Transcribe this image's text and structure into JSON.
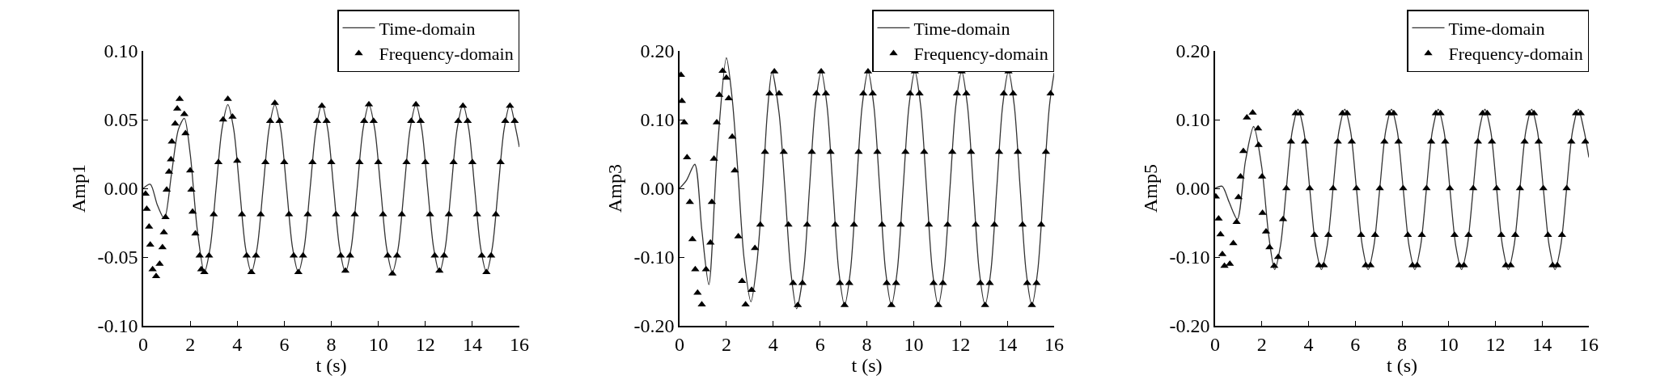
{
  "chart_data": [
    {
      "type": "line",
      "xlabel": "t (s)",
      "ylabel": "Amp1",
      "xlim": [
        0,
        16
      ],
      "xticks": [
        0,
        2,
        4,
        6,
        8,
        10,
        12,
        14,
        16
      ],
      "ylim": [
        -0.1,
        0.1
      ],
      "yticks": [
        {
          "value": -0.1,
          "label": "-0.10"
        },
        {
          "value": -0.05,
          "label": "-0.05"
        },
        {
          "value": 0,
          "label": "0.00"
        },
        {
          "value": 0.05,
          "label": "0.05"
        },
        {
          "value": 0.1,
          "label": "0.10"
        }
      ],
      "legend": "top right",
      "series": [
        {
          "name": "Time-domain",
          "type": "line",
          "color": "#333333",
          "line_style": "solid",
          "marker": "none",
          "x": [
            0,
            0.3,
            0.6,
            0.9,
            1.2,
            1.5,
            1.75,
            2.0,
            2.3,
            2.6,
            2.85,
            3.1,
            3.35,
            3.6,
            3.85,
            4.1,
            4.35,
            4.6,
            4.85,
            5.1,
            5.35,
            5.6,
            5.85,
            6.1,
            6.35,
            6.6,
            6.85,
            7.1,
            7.35,
            7.6,
            7.85,
            8.1,
            8.35,
            8.6,
            8.85,
            9.1,
            9.35,
            9.6,
            9.85,
            10.1,
            10.35,
            10.6,
            10.85,
            11.1,
            11.35,
            11.6,
            11.85,
            12.1,
            12.35,
            12.6,
            12.85,
            13.1,
            13.35,
            13.6,
            13.85,
            14.1,
            14.35,
            14.6,
            14.85,
            15.1,
            15.35,
            15.6,
            15.85,
            16
          ],
          "values": [
            0,
            0.003,
            -0.012,
            -0.022,
            0.01,
            0.043,
            0.051,
            0.025,
            -0.03,
            -0.061,
            -0.043,
            0,
            0.043,
            0.061,
            0.043,
            0,
            -0.043,
            -0.061,
            -0.043,
            0,
            0.043,
            0.061,
            0.043,
            0,
            -0.043,
            -0.061,
            -0.043,
            0,
            0.043,
            0.061,
            0.043,
            0,
            -0.043,
            -0.061,
            -0.043,
            0,
            0.043,
            0.061,
            0.043,
            0,
            -0.043,
            -0.061,
            -0.043,
            0,
            0.043,
            0.061,
            0.043,
            0,
            -0.043,
            -0.061,
            -0.043,
            0,
            0.043,
            0.061,
            0.043,
            0,
            -0.043,
            -0.061,
            -0.043,
            0,
            0.043,
            0.061,
            0.043,
            0.03
          ]
        },
        {
          "name": "Frequency-domain",
          "type": "scatter",
          "color": "#000000",
          "marker": "triangle",
          "x": [
            0.1,
            0.15,
            0.25,
            0.3,
            0.4,
            0.55,
            0.7,
            0.82,
            0.88,
            0.95,
            1.0,
            1.1,
            1.18,
            1.22,
            1.36,
            1.45,
            1.55,
            1.75,
            1.8,
            2.0,
            2.05,
            2.1,
            2.22,
            2.4,
            2.47,
            2.6,
            2.8,
            3,
            3.2,
            3.4,
            3.6,
            3.8,
            4,
            4.2,
            4.4,
            4.6,
            4.8,
            5,
            5.2,
            5.4,
            5.6,
            5.8,
            6,
            6.2,
            6.4,
            6.6,
            6.8,
            7,
            7.2,
            7.4,
            7.6,
            7.8,
            8,
            8.2,
            8.4,
            8.6,
            8.8,
            9,
            9.2,
            9.4,
            9.6,
            9.8,
            10,
            10.2,
            10.4,
            10.6,
            10.8,
            11,
            11.2,
            11.4,
            11.6,
            11.8,
            12,
            12.2,
            12.4,
            12.6,
            12.8,
            13,
            13.2,
            13.4,
            13.6,
            13.8,
            14,
            14.2,
            14.4,
            14.6,
            14.8,
            15,
            15.2,
            15.4,
            15.6,
            15.8
          ],
          "values": [
            -0.004,
            -0.015,
            -0.028,
            -0.041,
            -0.059,
            -0.064,
            -0.055,
            -0.043,
            -0.032,
            -0.021,
            -0.001,
            0.012,
            0.021,
            0.034,
            0.047,
            0.058,
            0.065,
            0.054,
            0.04,
            0.013,
            -0.001,
            -0.017,
            -0.033,
            -0.049,
            -0.059,
            -0.061,
            -0.049,
            -0.019,
            0.019,
            0.05,
            0.065,
            0.052,
            0.02,
            -0.019,
            -0.049,
            -0.061,
            -0.049,
            -0.019,
            0.019,
            0.049,
            0.062,
            0.049,
            0.019,
            -0.019,
            -0.049,
            -0.061,
            -0.049,
            -0.019,
            0.019,
            0.049,
            0.06,
            0.049,
            0.019,
            -0.019,
            -0.049,
            -0.06,
            -0.049,
            -0.019,
            0.019,
            0.049,
            0.061,
            0.049,
            0.019,
            -0.019,
            -0.049,
            -0.062,
            -0.049,
            -0.019,
            0.019,
            0.049,
            0.061,
            0.049,
            0.019,
            -0.019,
            -0.049,
            -0.06,
            -0.049,
            -0.019,
            0.019,
            0.049,
            0.06,
            0.049,
            0.019,
            -0.019,
            -0.049,
            -0.061,
            -0.049,
            -0.019,
            0.019,
            0.049,
            0.06,
            0.049
          ]
        }
      ]
    },
    {
      "type": "line",
      "xlabel": "t (s)",
      "ylabel": "Amp3",
      "xlim": [
        0,
        16
      ],
      "xticks": [
        0,
        2,
        4,
        6,
        8,
        10,
        12,
        14,
        16
      ],
      "ylim": [
        -0.2,
        0.2
      ],
      "yticks": [
        {
          "value": -0.2,
          "label": "-0.20"
        },
        {
          "value": -0.1,
          "label": "-0.10"
        },
        {
          "value": 0,
          "label": "0.00"
        },
        {
          "value": 0.1,
          "label": "0.10"
        },
        {
          "value": 0.2,
          "label": "0.20"
        }
      ],
      "legend": "top right",
      "series": [
        {
          "name": "Time-domain",
          "type": "line",
          "color": "#333333",
          "line_style": "solid",
          "marker": "none",
          "x": [
            0,
            0.3,
            0.65,
            0.95,
            1.25,
            1.6,
            2.0,
            2.25,
            2.5,
            2.75,
            3.05,
            3.3,
            3.55,
            3.75,
            3.95,
            4.25,
            4.5,
            4.75,
            5.0,
            5.3,
            5.55,
            5.8,
            6.05,
            6.3,
            6.55,
            6.8,
            7.05,
            7.3,
            7.55,
            7.8,
            8.05,
            8.3,
            8.55,
            8.8,
            9.05,
            9.3,
            9.55,
            9.8,
            10.05,
            10.3,
            10.55,
            10.8,
            11.05,
            11.3,
            11.55,
            11.8,
            12.05,
            12.3,
            12.55,
            12.8,
            13.05,
            13.3,
            13.55,
            13.8,
            14.05,
            14.3,
            14.55,
            14.8,
            15.05,
            15.3,
            15.55,
            15.8,
            16
          ],
          "values": [
            0,
            0.012,
            0.035,
            -0.06,
            -0.14,
            0.05,
            0.19,
            0.13,
            0.02,
            -0.1,
            -0.165,
            -0.11,
            0,
            0.11,
            0.17,
            0.11,
            0,
            -0.12,
            -0.175,
            -0.12,
            0,
            0.12,
            0.17,
            0.12,
            0,
            -0.12,
            -0.17,
            -0.12,
            0,
            0.12,
            0.17,
            0.12,
            0,
            -0.12,
            -0.17,
            -0.12,
            0,
            0.12,
            0.17,
            0.12,
            0,
            -0.12,
            -0.17,
            -0.12,
            0,
            0.12,
            0.17,
            0.12,
            0,
            -0.12,
            -0.17,
            -0.12,
            0,
            0.12,
            0.17,
            0.12,
            0,
            -0.12,
            -0.17,
            -0.12,
            0,
            0.12,
            0.168
          ]
        },
        {
          "name": "Frequency-domain",
          "type": "scatter",
          "color": "#000000",
          "marker": "triangle",
          "x": [
            0.06,
            0.1,
            0.2,
            0.32,
            0.44,
            0.55,
            0.67,
            0.77,
            0.95,
            1.13,
            1.32,
            1.38,
            1.47,
            1.59,
            1.7,
            1.84,
            2.0,
            2.1,
            2.25,
            2.36,
            2.51,
            2.67,
            2.82,
            3.08,
            3.22,
            3.45,
            3.65,
            3.85,
            4.05,
            4.25,
            4.45,
            4.65,
            4.85,
            5.05,
            5.25,
            5.45,
            5.65,
            5.85,
            6.05,
            6.25,
            6.45,
            6.65,
            6.85,
            7.05,
            7.25,
            7.45,
            7.65,
            7.85,
            8.05,
            8.25,
            8.45,
            8.65,
            8.85,
            9.05,
            9.25,
            9.45,
            9.65,
            9.85,
            10.05,
            10.25,
            10.45,
            10.65,
            10.85,
            11.05,
            11.25,
            11.45,
            11.65,
            11.85,
            12.05,
            12.25,
            12.45,
            12.65,
            12.85,
            13.05,
            13.25,
            13.45,
            13.65,
            13.85,
            14.05,
            14.25,
            14.45,
            14.65,
            14.85,
            15.05,
            15.25,
            15.45,
            15.65,
            15.85
          ],
          "values": [
            0.165,
            0.127,
            0.096,
            0.045,
            -0.02,
            -0.074,
            -0.118,
            -0.152,
            -0.169,
            -0.118,
            -0.079,
            -0.02,
            0.043,
            0.096,
            0.136,
            0.171,
            0.161,
            0.131,
            0.075,
            0.026,
            -0.07,
            -0.135,
            -0.169,
            -0.148,
            -0.087,
            -0.053,
            0.053,
            0.138,
            0.17,
            0.138,
            0.053,
            -0.053,
            -0.138,
            -0.17,
            -0.138,
            -0.053,
            0.053,
            0.138,
            0.17,
            0.138,
            0.053,
            -0.053,
            -0.138,
            -0.17,
            -0.138,
            -0.053,
            0.053,
            0.138,
            0.17,
            0.138,
            0.053,
            -0.053,
            -0.138,
            -0.17,
            -0.138,
            -0.053,
            0.053,
            0.138,
            0.17,
            0.138,
            0.053,
            -0.053,
            -0.138,
            -0.17,
            -0.138,
            -0.053,
            0.053,
            0.138,
            0.17,
            0.138,
            0.053,
            -0.053,
            -0.138,
            -0.17,
            -0.138,
            -0.053,
            0.053,
            0.138,
            0.17,
            0.138,
            0.053,
            -0.053,
            -0.138,
            -0.17,
            -0.138,
            -0.053,
            0.053,
            0.138
          ]
        }
      ]
    },
    {
      "type": "line",
      "xlabel": "t (s)",
      "ylabel": "Amp5",
      "xlim": [
        0,
        16
      ],
      "xticks": [
        0,
        2,
        4,
        6,
        8,
        10,
        12,
        14,
        16
      ],
      "ylim": [
        -0.2,
        0.2
      ],
      "yticks": [
        {
          "value": -0.2,
          "label": "-0.20"
        },
        {
          "value": -0.1,
          "label": "-0.10"
        },
        {
          "value": 0,
          "label": "0.00"
        },
        {
          "value": 0.1,
          "label": "0.10"
        },
        {
          "value": 0.2,
          "label": "0.20"
        }
      ],
      "legend": "top right",
      "series": [
        {
          "name": "Time-domain",
          "type": "line",
          "color": "#333333",
          "line_style": "solid",
          "marker": "none",
          "x": [
            0,
            0.3,
            0.6,
            0.95,
            1.3,
            1.65,
            2.0,
            2.3,
            2.55,
            2.8,
            3.05,
            3.3,
            3.55,
            3.8,
            4.05,
            4.3,
            4.55,
            4.8,
            5.05,
            5.3,
            5.55,
            5.8,
            6.05,
            6.3,
            6.55,
            6.8,
            7.05,
            7.3,
            7.55,
            7.8,
            8.05,
            8.3,
            8.55,
            8.8,
            9.05,
            9.3,
            9.55,
            9.8,
            10.05,
            10.3,
            10.55,
            10.8,
            11.05,
            11.3,
            11.55,
            11.8,
            12.05,
            12.3,
            12.55,
            12.8,
            13.05,
            13.3,
            13.55,
            13.8,
            14.05,
            14.3,
            14.55,
            14.8,
            15.05,
            15.3,
            15.55,
            15.8,
            16
          ],
          "values": [
            0,
            0.003,
            -0.02,
            -0.045,
            0.04,
            0.09,
            0.03,
            -0.07,
            -0.118,
            -0.083,
            0,
            0.083,
            0.115,
            0.083,
            0,
            -0.083,
            -0.118,
            -0.083,
            0,
            0.083,
            0.115,
            0.083,
            0,
            -0.083,
            -0.118,
            -0.083,
            0,
            0.083,
            0.115,
            0.083,
            0,
            -0.083,
            -0.118,
            -0.083,
            0,
            0.083,
            0.115,
            0.083,
            0,
            -0.083,
            -0.118,
            -0.083,
            0,
            0.083,
            0.115,
            0.083,
            0,
            -0.083,
            -0.118,
            -0.083,
            0,
            0.083,
            0.115,
            0.083,
            0,
            -0.083,
            -0.118,
            -0.083,
            0,
            0.083,
            0.115,
            0.083,
            0.045
          ]
        },
        {
          "name": "Frequency-domain",
          "type": "scatter",
          "color": "#000000",
          "marker": "triangle",
          "x": [
            0.03,
            0.15,
            0.23,
            0.31,
            0.4,
            0.63,
            0.78,
            0.92,
            1.0,
            1.09,
            1.21,
            1.36,
            1.61,
            1.84,
            1.86,
            2.01,
            2.03,
            2.18,
            2.33,
            2.53,
            2.7,
            2.91,
            3.05,
            3.25,
            3.45,
            3.65,
            3.85,
            4.05,
            4.25,
            4.45,
            4.65,
            4.85,
            5.05,
            5.25,
            5.45,
            5.65,
            5.85,
            6.05,
            6.25,
            6.45,
            6.65,
            6.85,
            7.05,
            7.25,
            7.45,
            7.65,
            7.85,
            8.05,
            8.25,
            8.45,
            8.65,
            8.85,
            9.05,
            9.25,
            9.45,
            9.65,
            9.85,
            10.05,
            10.25,
            10.45,
            10.65,
            10.85,
            11.05,
            11.25,
            11.45,
            11.65,
            11.85,
            12.05,
            12.25,
            12.45,
            12.65,
            12.85,
            13.05,
            13.25,
            13.45,
            13.65,
            13.85,
            14.05,
            14.25,
            14.45,
            14.65,
            14.85,
            15.05,
            15.25,
            15.45,
            15.65,
            15.85
          ],
          "values": [
            -0.012,
            -0.044,
            -0.067,
            -0.096,
            -0.113,
            -0.11,
            -0.08,
            -0.049,
            -0.013,
            0.017,
            0.054,
            0.103,
            0.11,
            0.087,
            0.063,
            0.017,
            -0.036,
            -0.063,
            -0.086,
            -0.113,
            -0.1,
            -0.045,
            0,
            0.068,
            0.109,
            0.109,
            0.068,
            0,
            -0.068,
            -0.112,
            -0.112,
            -0.068,
            0,
            0.068,
            0.109,
            0.109,
            0.068,
            0,
            -0.068,
            -0.112,
            -0.112,
            -0.068,
            0,
            0.068,
            0.109,
            0.109,
            0.068,
            0,
            -0.068,
            -0.112,
            -0.112,
            -0.068,
            0,
            0.068,
            0.109,
            0.109,
            0.068,
            0,
            -0.068,
            -0.112,
            -0.112,
            -0.068,
            0,
            0.068,
            0.109,
            0.109,
            0.068,
            0,
            -0.068,
            -0.112,
            -0.112,
            -0.068,
            0,
            0.068,
            0.109,
            0.109,
            0.068,
            0,
            -0.068,
            -0.112,
            -0.112,
            -0.068,
            0,
            0.068,
            0.109,
            0.109,
            0.068
          ]
        }
      ]
    }
  ]
}
